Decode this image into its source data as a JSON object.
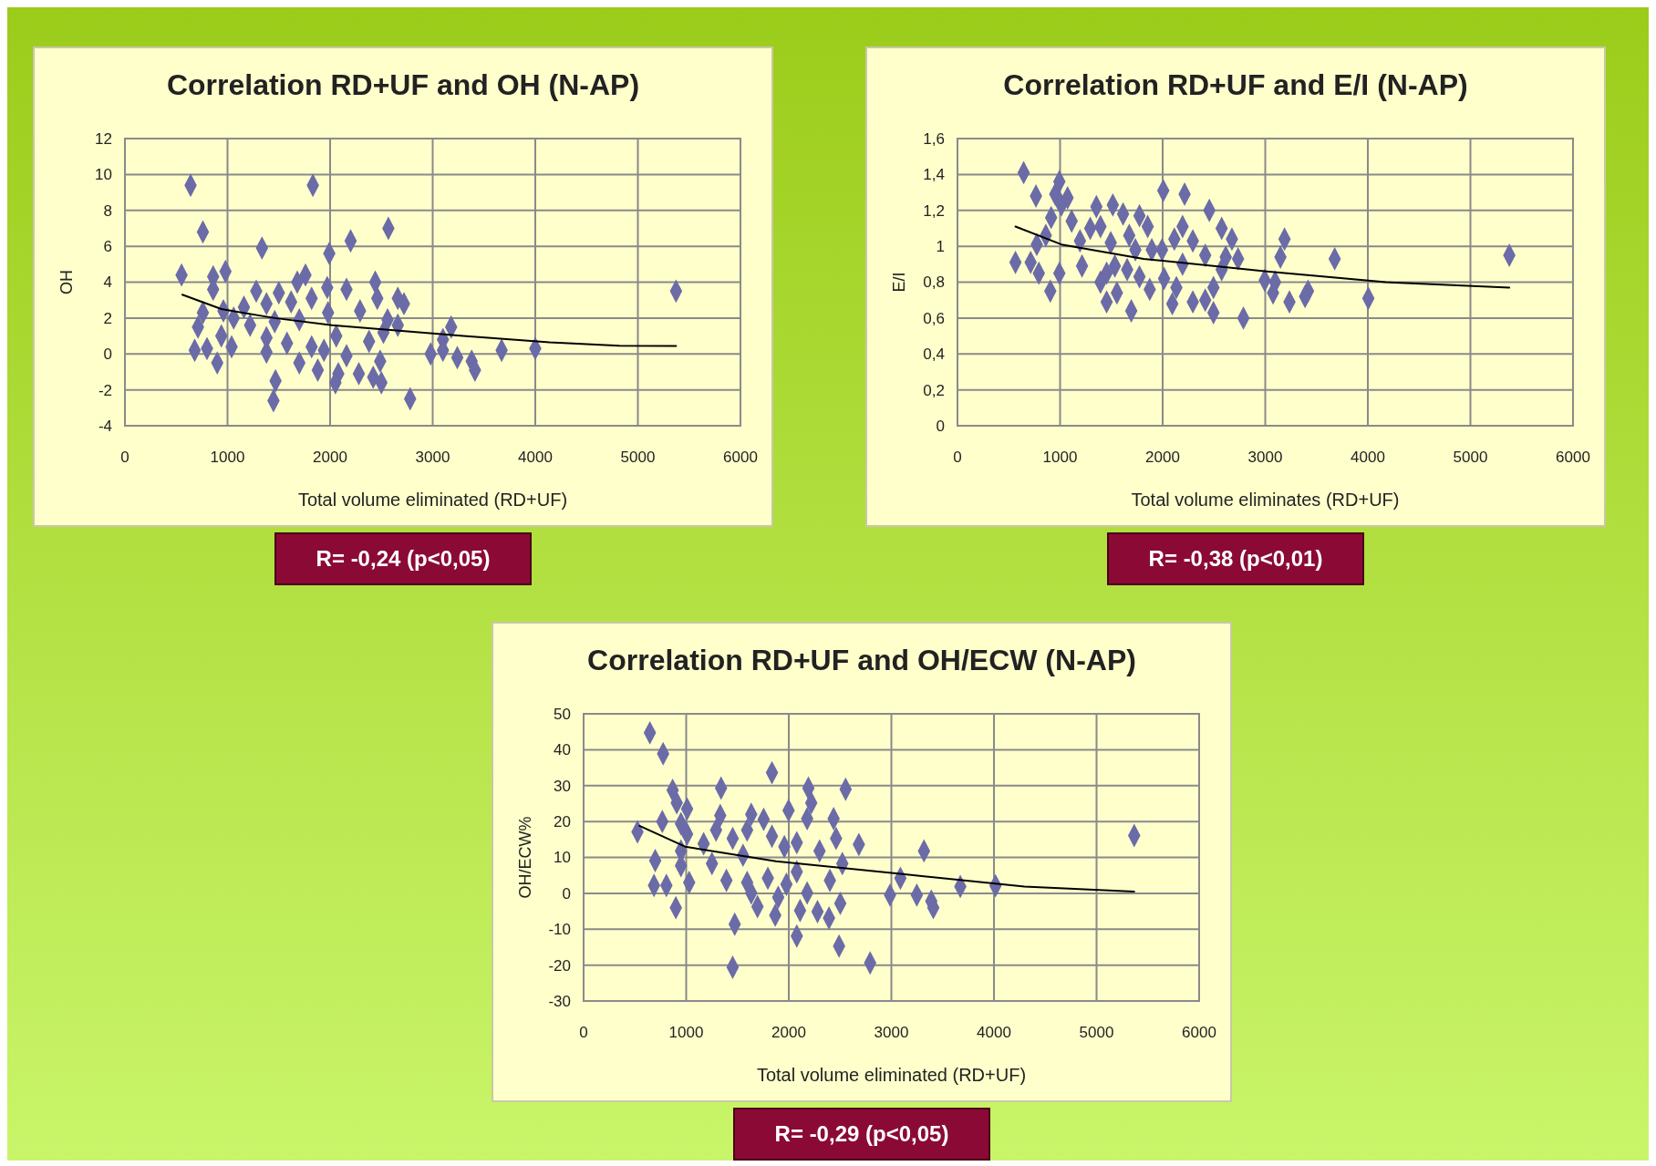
{
  "chart_data": [
    {
      "type": "scatter",
      "title": "Correlation RD+UF and OH (N-AP)",
      "xlabel": "Total volume eliminated (RD+UF)",
      "ylabel": "OH",
      "xlim": [
        0,
        6000
      ],
      "xticks": [
        0,
        1000,
        2000,
        3000,
        4000,
        5000,
        6000
      ],
      "ylim": [
        -4,
        12
      ],
      "yticks": [
        -4,
        -2,
        0,
        2,
        4,
        6,
        8,
        10,
        12
      ],
      "grid": true,
      "annotations": [
        "R= -0,24 (p<0,05)"
      ],
      "series": [
        {
          "marker": "diamond",
          "color": "#6b6ba8",
          "x": [
            640,
            1832,
            760,
            2568,
            1336,
            2200,
            1992,
            552,
            860,
            980,
            860,
            1760,
            1680,
            2440,
            1972,
            2160,
            1280,
            1500,
            1820,
            2460,
            2660,
            2720,
            1620,
            1380,
            1160,
            2292,
            760,
            960,
            1060,
            1220,
            1460,
            1700,
            1980,
            2560,
            2660,
            712,
            3180,
            2520,
            940,
            2060,
            1380,
            1580,
            2380,
            3100,
            1040,
            1820,
            680,
            800,
            1380,
            1940,
            2980,
            3100,
            2160,
            3240,
            3672,
            4000,
            3380,
            3412,
            900,
            1700,
            1880,
            2488,
            2080,
            2280,
            2420,
            2500,
            2052,
            1468,
            1448,
            2780,
            5372
          ],
          "values": [
            9.4,
            9.4,
            6.8,
            7.0,
            5.9,
            6.3,
            5.6,
            4.4,
            4.3,
            4.6,
            3.6,
            4.4,
            4.0,
            4.0,
            3.7,
            3.6,
            3.5,
            3.4,
            3.1,
            3.1,
            3.1,
            2.8,
            2.9,
            2.8,
            2.6,
            2.4,
            2.3,
            2.4,
            2.0,
            1.6,
            1.8,
            1.9,
            2.3,
            1.9,
            1.6,
            1.5,
            1.5,
            1.2,
            1.0,
            1.0,
            0.9,
            0.6,
            0.7,
            0.8,
            0.4,
            0.4,
            0.2,
            0.3,
            0.1,
            0.2,
            0.0,
            0.2,
            -0.1,
            -0.2,
            0.2,
            0.3,
            -0.4,
            -0.9,
            -0.5,
            -0.5,
            -0.9,
            -0.4,
            -1.1,
            -1.1,
            -1.3,
            -1.6,
            -1.6,
            -1.5,
            -2.6,
            -2.5,
            3.5
          ]
        },
        {
          "type": "line",
          "marker": "none",
          "color": "#000000",
          "x": [
            560,
            940,
            1460,
            2020,
            3300,
            4140,
            4820,
            5372
          ],
          "values": [
            3.3,
            2.5,
            2.0,
            1.6,
            1.0,
            0.65,
            0.46,
            0.45
          ]
        }
      ]
    },
    {
      "type": "scatter",
      "title": "Correlation RD+UF and E/I (N-AP)",
      "xlabel": "Total volume eliminates (RD+UF)",
      "ylabel": "E/I",
      "xlim": [
        0,
        6000
      ],
      "xticks": [
        0,
        1000,
        2000,
        3000,
        4000,
        5000,
        6000
      ],
      "ylim": [
        0,
        1.6
      ],
      "yticks": [
        0,
        {
          "value": 0.2,
          "label": "0,2"
        },
        {
          "value": 0.4,
          "label": "0,4"
        },
        {
          "value": 0.6,
          "label": "0,6"
        },
        {
          "value": 0.8,
          "label": "0,8"
        },
        1,
        {
          "value": 1.2,
          "label": "1,2"
        },
        {
          "value": 1.4,
          "label": "1,4"
        },
        {
          "value": 1.6,
          "label": "1,6"
        }
      ],
      "grid": true,
      "annotations": [
        "R= -0,38 (p<0,01)"
      ],
      "series": [
        {
          "marker": "diamond",
          "color": "#6b6ba8",
          "x": [
            645,
            993,
            765,
            953,
            1073,
            1013,
            2006,
            2214,
            1354,
            1514,
            1614,
            1774,
            1113,
            913,
            2455,
            1854,
            2194,
            1294,
            1394,
            2575,
            861,
            773,
            1194,
            1674,
            1494,
            2114,
            2294,
            2675,
            3188,
            1734,
            1894,
            1994,
            2415,
            2615,
            2735,
            3148,
            3677,
            5379,
            565,
            713,
            1214,
            1534,
            2194,
            793,
            993,
            1454,
            1654,
            2575,
            1394,
            1774,
            2014,
            2995,
            2134,
            2495,
            3096,
            1874,
            3076,
            3417,
            905,
            1454,
            1554,
            2094,
            2294,
            2415,
            3388,
            3236,
            4005,
            1694,
            2495,
            2787
          ],
          "values": [
            1.41,
            1.36,
            1.28,
            1.29,
            1.27,
            1.23,
            1.31,
            1.29,
            1.22,
            1.23,
            1.18,
            1.17,
            1.14,
            1.16,
            1.2,
            1.11,
            1.11,
            1.1,
            1.11,
            1.1,
            1.06,
            1.01,
            1.03,
            1.06,
            1.02,
            1.04,
            1.03,
            1.04,
            1.04,
            0.98,
            0.98,
            0.98,
            0.95,
            0.94,
            0.93,
            0.94,
            0.93,
            0.95,
            0.91,
            0.91,
            0.89,
            0.89,
            0.9,
            0.85,
            0.85,
            0.85,
            0.87,
            0.87,
            0.8,
            0.83,
            0.82,
            0.81,
            0.77,
            0.77,
            0.8,
            0.76,
            0.74,
            0.75,
            0.75,
            0.69,
            0.74,
            0.68,
            0.69,
            0.7,
            0.72,
            0.69,
            0.71,
            0.64,
            0.63,
            0.6
          ]
        },
        {
          "type": "line",
          "marker": "none",
          "color": "#000000",
          "x": [
            565,
            1013,
            1814,
            3016,
            4177,
            5379
          ],
          "values": [
            1.11,
            1.01,
            0.93,
            0.86,
            0.8,
            0.77
          ]
        }
      ]
    },
    {
      "type": "scatter",
      "title": "Correlation RD+UF and OH/ECW (N-AP)",
      "xlabel": "Total volume eliminated (RD+UF)",
      "ylabel": "OH/ECW%",
      "xlim": [
        0,
        6000
      ],
      "xticks": [
        0,
        1000,
        2000,
        3000,
        4000,
        5000,
        6000
      ],
      "ylim": [
        -30,
        50
      ],
      "yticks": [
        -30,
        -20,
        -10,
        0,
        10,
        20,
        30,
        40,
        50
      ],
      "grid": true,
      "annotations": [
        "R= -0,29 (p<0,05)"
      ],
      "series": [
        {
          "marker": "diamond",
          "color": "#6b6ba8",
          "x": [
            646,
            775,
            1836,
            868,
            1340,
            2191,
            2554,
            2219,
            908,
            1009,
            1998,
            1634,
            1755,
            767,
            1332,
            2179,
            2437,
            525,
            949,
            1291,
            1594,
            1836,
            1453,
            1009,
            2078,
            1957,
            2461,
            2683,
            1170,
            3318,
            949,
            2300,
            698,
            1251,
            1554,
            2522,
            949,
            2078,
            1029,
            1392,
            1594,
            1796,
            1977,
            2401,
            3088,
            3672,
            4015,
            686,
            807,
            2179,
            2987,
            3248,
            1634,
            1695,
            1897,
            3389,
            3409,
            899,
            2502,
            2110,
            2280,
            2392,
            1868,
            1473,
            2078,
            2490,
            2793,
            1453,
            5367
          ],
          "values": [
            44.7,
            38.9,
            33.6,
            28.7,
            29.3,
            29.3,
            29.0,
            25.2,
            25.2,
            23.5,
            23.1,
            22.0,
            20.6,
            20.0,
            21.7,
            20.8,
            20.8,
            17.1,
            19.4,
            17.6,
            17.6,
            15.9,
            15.3,
            16.5,
            14.1,
            13.0,
            15.3,
            13.6,
            13.8,
            11.8,
            11.8,
            11.8,
            9.1,
            8.3,
            10.6,
            8.3,
            7.7,
            6.0,
            3.0,
            3.6,
            3.0,
            4.2,
            2.5,
            3.6,
            4.2,
            1.9,
            2.1,
            2.2,
            2.2,
            0.1,
            -0.5,
            -0.5,
            0.1,
            -3.7,
            -1.1,
            -2.2,
            -4.0,
            -4.0,
            -2.8,
            -4.8,
            -5.1,
            -6.9,
            -6.1,
            -8.6,
            -11.9,
            -14.7,
            -19.4,
            -20.6,
            16.1
          ]
        },
        {
          "type": "line",
          "marker": "none",
          "color": "#000000",
          "x": [
            545,
            989,
            1876,
            3088,
            4298,
            5367
          ],
          "values": [
            18.8,
            13.0,
            8.9,
            5.4,
            1.9,
            0.5
          ]
        }
      ]
    }
  ]
}
